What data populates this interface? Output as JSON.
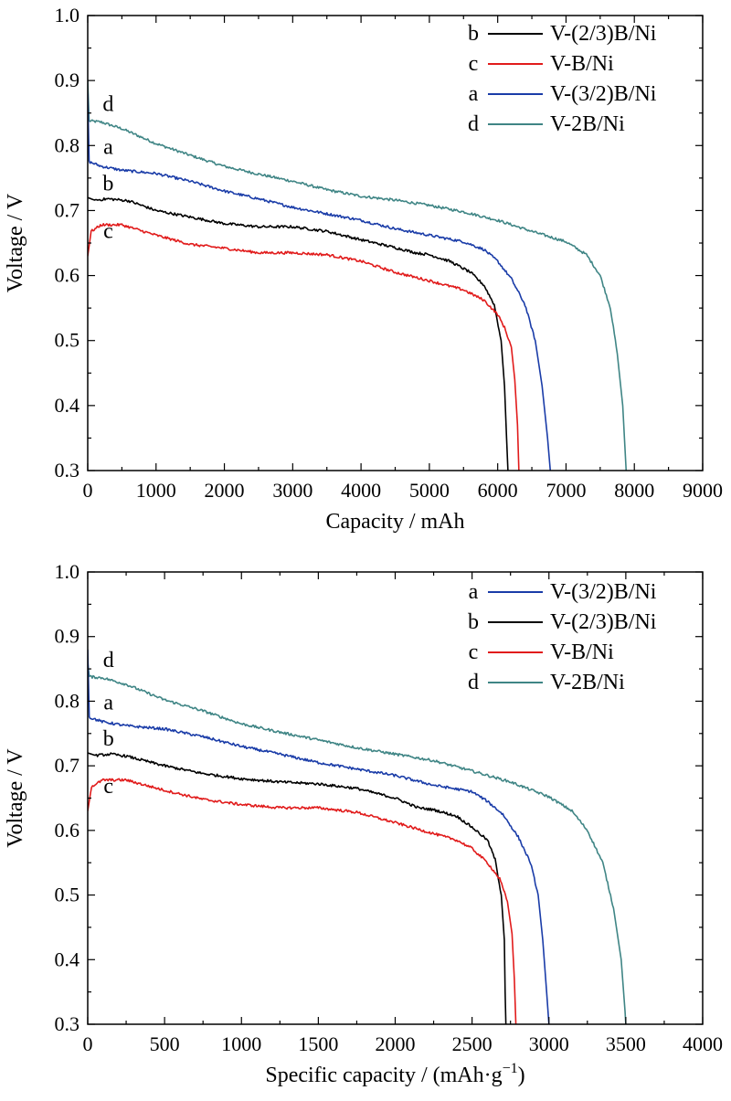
{
  "colors": {
    "black": "#000000",
    "red": "#e11b1b",
    "blue": "#1a3ca8",
    "teal": "#3f8585"
  },
  "chart_data": [
    {
      "type": "line",
      "xlabel": "Capacity / mAh",
      "ylabel": "Voltage / V",
      "xlim": [
        0,
        9000
      ],
      "ylim": [
        0.3,
        1.0
      ],
      "xticks": [
        0,
        1000,
        2000,
        3000,
        4000,
        5000,
        6000,
        7000,
        8000,
        9000
      ],
      "yticks": [
        0.3,
        0.4,
        0.5,
        0.6,
        0.7,
        0.8,
        0.9,
        1.0
      ],
      "legend_position": "top-right",
      "legend": [
        {
          "tag": "b",
          "label": "V-(2/3)B/Ni",
          "color": "#000000"
        },
        {
          "tag": "c",
          "label": "V-B/Ni",
          "color": "#e11b1b"
        },
        {
          "tag": "a",
          "label": "V-(3/2)B/Ni",
          "color": "#1a3ca8"
        },
        {
          "tag": "d",
          "label": "V-2B/Ni",
          "color": "#3f8585"
        }
      ],
      "series": [
        {
          "tag": "d",
          "label_at": [
            300,
            0.853
          ],
          "name": "V-2B/Ni",
          "color": "#3f8585",
          "points": [
            [
              0,
              0.9
            ],
            [
              20,
              0.838
            ],
            [
              200,
              0.836
            ],
            [
              500,
              0.826
            ],
            [
              1000,
              0.803
            ],
            [
              1500,
              0.785
            ],
            [
              2000,
              0.768
            ],
            [
              2500,
              0.756
            ],
            [
              3000,
              0.745
            ],
            [
              3500,
              0.732
            ],
            [
              4000,
              0.722
            ],
            [
              4500,
              0.716
            ],
            [
              5000,
              0.708
            ],
            [
              5500,
              0.698
            ],
            [
              6000,
              0.685
            ],
            [
              6500,
              0.668
            ],
            [
              7000,
              0.652
            ],
            [
              7300,
              0.632
            ],
            [
              7500,
              0.6
            ],
            [
              7650,
              0.55
            ],
            [
              7750,
              0.48
            ],
            [
              7830,
              0.4
            ],
            [
              7870,
              0.32
            ],
            [
              7880,
              0.3
            ]
          ]
        },
        {
          "tag": "a",
          "label_at": [
            300,
            0.787
          ],
          "name": "V-(3/2)B/Ni",
          "color": "#1a3ca8",
          "points": [
            [
              0,
              0.88
            ],
            [
              20,
              0.775
            ],
            [
              200,
              0.768
            ],
            [
              500,
              0.762
            ],
            [
              1000,
              0.757
            ],
            [
              1500,
              0.745
            ],
            [
              2000,
              0.73
            ],
            [
              2500,
              0.718
            ],
            [
              3000,
              0.705
            ],
            [
              3500,
              0.695
            ],
            [
              4000,
              0.685
            ],
            [
              4500,
              0.672
            ],
            [
              5000,
              0.662
            ],
            [
              5500,
              0.652
            ],
            [
              5800,
              0.64
            ],
            [
              6000,
              0.622
            ],
            [
              6200,
              0.595
            ],
            [
              6400,
              0.555
            ],
            [
              6550,
              0.5
            ],
            [
              6650,
              0.43
            ],
            [
              6730,
              0.35
            ],
            [
              6770,
              0.3
            ]
          ]
        },
        {
          "tag": "b",
          "label_at": [
            300,
            0.731
          ],
          "name": "V-(2/3)B/Ni",
          "color": "#000000",
          "points": [
            [
              0,
              0.72
            ],
            [
              100,
              0.716
            ],
            [
              300,
              0.718
            ],
            [
              600,
              0.715
            ],
            [
              1000,
              0.7
            ],
            [
              1500,
              0.69
            ],
            [
              2000,
              0.68
            ],
            [
              2500,
              0.675
            ],
            [
              3000,
              0.675
            ],
            [
              3500,
              0.668
            ],
            [
              4000,
              0.655
            ],
            [
              4500,
              0.643
            ],
            [
              4800,
              0.635
            ],
            [
              5000,
              0.632
            ],
            [
              5300,
              0.622
            ],
            [
              5600,
              0.605
            ],
            [
              5800,
              0.585
            ],
            [
              5950,
              0.555
            ],
            [
              6050,
              0.5
            ],
            [
              6100,
              0.43
            ],
            [
              6130,
              0.35
            ],
            [
              6150,
              0.3
            ]
          ]
        },
        {
          "tag": "c",
          "label_at": [
            300,
            0.658
          ],
          "name": "V-B/Ni",
          "color": "#e11b1b",
          "points": [
            [
              0,
              0.63
            ],
            [
              50,
              0.668
            ],
            [
              200,
              0.678
            ],
            [
              500,
              0.678
            ],
            [
              1000,
              0.662
            ],
            [
              1500,
              0.648
            ],
            [
              2000,
              0.642
            ],
            [
              2500,
              0.635
            ],
            [
              3000,
              0.635
            ],
            [
              3500,
              0.632
            ],
            [
              4000,
              0.622
            ],
            [
              4500,
              0.605
            ],
            [
              5000,
              0.592
            ],
            [
              5500,
              0.578
            ],
            [
              5800,
              0.562
            ],
            [
              6000,
              0.54
            ],
            [
              6100,
              0.52
            ],
            [
              6200,
              0.49
            ],
            [
              6250,
              0.44
            ],
            [
              6290,
              0.37
            ],
            [
              6310,
              0.3
            ]
          ]
        }
      ]
    },
    {
      "type": "line",
      "xlabel": "Specific capacity / (mAh·g",
      "xlabel_sup": "−1",
      "xlabel_end": ")",
      "ylabel": "Voltage / V",
      "xlim": [
        0,
        4000
      ],
      "ylim": [
        0.3,
        1.0
      ],
      "xticks": [
        0,
        500,
        1000,
        1500,
        2000,
        2500,
        3000,
        3500,
        4000
      ],
      "yticks": [
        0.3,
        0.4,
        0.5,
        0.6,
        0.7,
        0.8,
        0.9,
        1.0
      ],
      "legend_position": "top-right",
      "legend": [
        {
          "tag": "a",
          "label": "V-(3/2)B/Ni",
          "color": "#1a3ca8"
        },
        {
          "tag": "b",
          "label": "V-(2/3)B/Ni",
          "color": "#000000"
        },
        {
          "tag": "c",
          "label": "V-B/Ni",
          "color": "#e11b1b"
        },
        {
          "tag": "d",
          "label": "V-2B/Ni",
          "color": "#3f8585"
        }
      ],
      "series": [
        {
          "tag": "d",
          "label_at": [
            135,
            0.853
          ],
          "name": "V-2B/Ni",
          "color": "#3f8585",
          "points": [
            [
              0,
              0.86
            ],
            [
              10,
              0.838
            ],
            [
              100,
              0.836
            ],
            [
              250,
              0.826
            ],
            [
              500,
              0.802
            ],
            [
              750,
              0.785
            ],
            [
              1000,
              0.765
            ],
            [
              1250,
              0.752
            ],
            [
              1500,
              0.74
            ],
            [
              1750,
              0.728
            ],
            [
              2000,
              0.718
            ],
            [
              2250,
              0.708
            ],
            [
              2500,
              0.692
            ],
            [
              2750,
              0.675
            ],
            [
              3000,
              0.652
            ],
            [
              3150,
              0.63
            ],
            [
              3250,
              0.6
            ],
            [
              3350,
              0.55
            ],
            [
              3420,
              0.48
            ],
            [
              3470,
              0.4
            ],
            [
              3495,
              0.32
            ],
            [
              3500,
              0.3
            ]
          ]
        },
        {
          "tag": "a",
          "label_at": [
            135,
            0.787
          ],
          "name": "V-(3/2)B/Ni",
          "color": "#1a3ca8",
          "points": [
            [
              0,
              0.88
            ],
            [
              10,
              0.775
            ],
            [
              100,
              0.768
            ],
            [
              250,
              0.762
            ],
            [
              500,
              0.757
            ],
            [
              750,
              0.745
            ],
            [
              1000,
              0.73
            ],
            [
              1250,
              0.718
            ],
            [
              1500,
              0.705
            ],
            [
              1750,
              0.695
            ],
            [
              2000,
              0.685
            ],
            [
              2250,
              0.67
            ],
            [
              2500,
              0.66
            ],
            [
              2600,
              0.645
            ],
            [
              2700,
              0.625
            ],
            [
              2800,
              0.59
            ],
            [
              2880,
              0.55
            ],
            [
              2930,
              0.5
            ],
            [
              2960,
              0.43
            ],
            [
              2985,
              0.35
            ],
            [
              3000,
              0.3
            ]
          ]
        },
        {
          "tag": "b",
          "label_at": [
            135,
            0.731
          ],
          "name": "V-(2/3)B/Ni",
          "color": "#000000",
          "points": [
            [
              0,
              0.72
            ],
            [
              50,
              0.716
            ],
            [
              150,
              0.718
            ],
            [
              250,
              0.715
            ],
            [
              500,
              0.7
            ],
            [
              750,
              0.688
            ],
            [
              1000,
              0.68
            ],
            [
              1250,
              0.675
            ],
            [
              1500,
              0.672
            ],
            [
              1750,
              0.665
            ],
            [
              2000,
              0.65
            ],
            [
              2150,
              0.635
            ],
            [
              2250,
              0.632
            ],
            [
              2400,
              0.622
            ],
            [
              2500,
              0.605
            ],
            [
              2600,
              0.585
            ],
            [
              2650,
              0.555
            ],
            [
              2690,
              0.5
            ],
            [
              2710,
              0.43
            ],
            [
              2715,
              0.35
            ],
            [
              2720,
              0.3
            ]
          ]
        },
        {
          "tag": "c",
          "label_at": [
            135,
            0.658
          ],
          "name": "V-B/Ni",
          "color": "#e11b1b",
          "points": [
            [
              0,
              0.63
            ],
            [
              25,
              0.668
            ],
            [
              100,
              0.678
            ],
            [
              250,
              0.678
            ],
            [
              500,
              0.662
            ],
            [
              750,
              0.648
            ],
            [
              1000,
              0.64
            ],
            [
              1250,
              0.635
            ],
            [
              1500,
              0.635
            ],
            [
              1750,
              0.628
            ],
            [
              2000,
              0.612
            ],
            [
              2250,
              0.595
            ],
            [
              2400,
              0.585
            ],
            [
              2500,
              0.572
            ],
            [
              2600,
              0.55
            ],
            [
              2680,
              0.525
            ],
            [
              2730,
              0.49
            ],
            [
              2760,
              0.44
            ],
            [
              2775,
              0.37
            ],
            [
              2785,
              0.3
            ]
          ]
        }
      ]
    }
  ]
}
